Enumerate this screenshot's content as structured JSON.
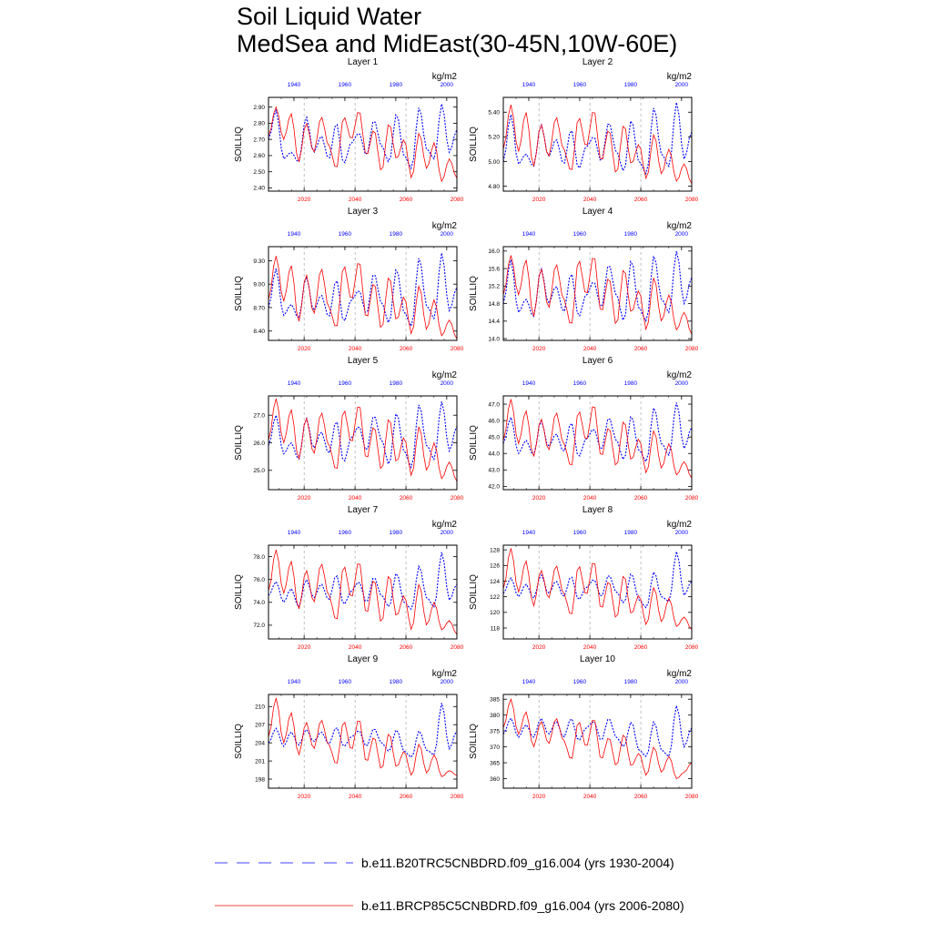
{
  "title_line1": "Soil Liquid Water",
  "title_line2": "MedSea and MidEast(30-45N,10W-60E)",
  "colors": {
    "historical": "#0000ff",
    "future": "#ff0000",
    "frame": "#000000",
    "vline": "#999999"
  },
  "legend": [
    {
      "label": "b.e11.B20TRC5CNBDRD.f09_g16.004 (yrs 1930-2004)",
      "color": "#0000ff",
      "style": "dashed"
    },
    {
      "label": "b.e11.BRCP85C5CNBDRD.f09_g16.004 (yrs 2006-2080)",
      "color": "#ff0000",
      "style": "solid"
    }
  ],
  "chart_data": [
    {
      "type": "line",
      "title": "Layer 1",
      "ylabel": "SOILLIQ",
      "units": "kg/m2",
      "yticks": [
        "2.40",
        "2.50",
        "2.60",
        "2.70",
        "2.80",
        "2.90"
      ],
      "ylim": [
        2.38,
        2.96
      ],
      "x_hist": {
        "start": 1930,
        "end": 2004,
        "ticks": [
          "1940",
          "1960",
          "1980",
          "2000"
        ]
      },
      "x_fut": {
        "start": 2006,
        "end": 2080,
        "ticks": [
          "2020",
          "2040",
          "2060",
          "2080"
        ]
      },
      "series": [
        {
          "name": "b.e11.B20TRC5CNBDRD.f09_g16.004 (yrs 1930-2004)",
          "anchors": [
            2.7,
            2.88,
            2.58,
            2.62,
            2.56,
            2.84,
            2.62,
            2.72,
            2.58,
            2.8,
            2.55,
            2.68,
            2.74,
            2.6,
            2.82,
            2.66,
            2.56,
            2.86,
            2.6,
            2.52,
            2.9,
            2.64,
            2.58,
            2.92,
            2.62,
            2.76
          ]
        },
        {
          "name": "b.e11.BRCP85C5CNBDRD.f09_g16.004 (yrs 2006-2080)",
          "anchors": [
            2.72,
            2.9,
            2.7,
            2.86,
            2.56,
            2.8,
            2.62,
            2.84,
            2.66,
            2.52,
            2.84,
            2.7,
            2.88,
            2.6,
            2.76,
            2.5,
            2.8,
            2.58,
            2.7,
            2.46,
            2.74,
            2.52,
            2.68,
            2.44,
            2.58,
            2.46
          ]
        }
      ]
    },
    {
      "type": "line",
      "title": "Layer 2",
      "ylabel": "SOILLIQ",
      "units": "kg/m2",
      "yticks": [
        "4.80",
        "5.00",
        "5.20",
        "5.40"
      ],
      "ylim": [
        4.76,
        5.52
      ],
      "x_hist": {
        "start": 1930,
        "end": 2004,
        "ticks": [
          "1940",
          "1960",
          "1980",
          "2000"
        ]
      },
      "x_fut": {
        "start": 2006,
        "end": 2080,
        "ticks": [
          "2020",
          "2040",
          "2060",
          "2080"
        ]
      },
      "series": [
        {
          "name": "b.e11.B20TRC5CNBDRD.f09_g16.004 (yrs 1930-2004)",
          "anchors": [
            5.0,
            5.38,
            4.98,
            5.06,
            4.96,
            5.3,
            5.04,
            5.18,
            4.98,
            5.26,
            4.94,
            5.12,
            5.2,
            5.0,
            5.32,
            5.08,
            4.92,
            5.34,
            5.0,
            4.9,
            5.44,
            5.06,
            4.96,
            5.48,
            5.02,
            5.24
          ]
        },
        {
          "name": "b.e11.BRCP85C5CNBDRD.f09_g16.004 (yrs 2006-2080)",
          "anchors": [
            5.1,
            5.46,
            5.08,
            5.4,
            4.96,
            5.3,
            5.04,
            5.36,
            5.1,
            4.92,
            5.36,
            5.12,
            5.42,
            5.0,
            5.26,
            4.9,
            5.3,
            4.98,
            5.14,
            4.86,
            5.22,
            4.9,
            5.1,
            4.84,
            4.98,
            4.82
          ]
        }
      ]
    },
    {
      "type": "line",
      "title": "Layer 3",
      "ylabel": "SOILLIQ",
      "units": "kg/m2",
      "yticks": [
        "8.40",
        "8.70",
        "9.00",
        "9.30"
      ],
      "ylim": [
        8.28,
        9.48
      ],
      "x_hist": {
        "start": 1930,
        "end": 2004,
        "ticks": [
          "1940",
          "1960",
          "1980",
          "2000"
        ]
      },
      "x_fut": {
        "start": 2006,
        "end": 2080,
        "ticks": [
          "2020",
          "2040",
          "2060",
          "2080"
        ]
      },
      "series": [
        {
          "name": "b.e11.B20TRC5CNBDRD.f09_g16.004 (yrs 1930-2004)",
          "anchors": [
            8.7,
            9.2,
            8.6,
            8.74,
            8.56,
            9.1,
            8.66,
            8.86,
            8.58,
            9.06,
            8.52,
            8.8,
            8.92,
            8.62,
            9.14,
            8.76,
            8.5,
            9.2,
            8.64,
            8.46,
            9.34,
            8.72,
            8.56,
            9.4,
            8.66,
            8.96
          ]
        },
        {
          "name": "b.e11.BRCP85C5CNBDRD.f09_g16.004 (yrs 2006-2080)",
          "anchors": [
            8.8,
            9.36,
            8.78,
            9.24,
            8.52,
            9.12,
            8.62,
            9.2,
            8.7,
            8.44,
            9.24,
            8.8,
            9.3,
            8.56,
            9.02,
            8.42,
            9.1,
            8.54,
            8.84,
            8.36,
            8.98,
            8.42,
            8.8,
            8.34,
            8.54,
            8.3
          ]
        }
      ]
    },
    {
      "type": "line",
      "title": "Layer 4",
      "ylabel": "SOILLIQ",
      "units": "kg/m2",
      "yticks": [
        "14.0",
        "14.4",
        "14.8",
        "15.2",
        "15.6",
        "16.0"
      ],
      "ylim": [
        13.96,
        16.1
      ],
      "x_hist": {
        "start": 1930,
        "end": 2004,
        "ticks": [
          "1940",
          "1960",
          "1980",
          "2000"
        ]
      },
      "x_fut": {
        "start": 2006,
        "end": 2080,
        "ticks": [
          "2020",
          "2040",
          "2060",
          "2080"
        ]
      },
      "series": [
        {
          "name": "b.e11.B20TRC5CNBDRD.f09_g16.004 (yrs 1930-2004)",
          "anchors": [
            14.8,
            15.8,
            14.6,
            14.9,
            14.5,
            15.6,
            14.8,
            15.2,
            14.6,
            15.5,
            14.5,
            15.0,
            15.3,
            14.7,
            15.7,
            15.0,
            14.4,
            15.8,
            14.7,
            14.4,
            15.9,
            14.9,
            14.6,
            16.0,
            14.8,
            15.4
          ]
        },
        {
          "name": "b.e11.BRCP85C5CNBDRD.f09_g16.004 (yrs 2006-2080)",
          "anchors": [
            15.0,
            15.9,
            15.0,
            15.8,
            14.5,
            15.6,
            14.7,
            15.7,
            14.9,
            14.3,
            15.8,
            15.0,
            15.9,
            14.6,
            15.4,
            14.3,
            15.6,
            14.6,
            15.1,
            14.2,
            15.4,
            14.4,
            15.0,
            14.2,
            14.6,
            14.1
          ]
        }
      ]
    },
    {
      "type": "line",
      "title": "Layer 5",
      "ylabel": "SOILLIQ",
      "units": "kg/m2",
      "yticks": [
        "25.0",
        "26.0",
        "27.0"
      ],
      "ylim": [
        24.3,
        27.7
      ],
      "x_hist": {
        "start": 1930,
        "end": 2004,
        "ticks": [
          "1940",
          "1960",
          "1980",
          "2000"
        ]
      },
      "x_fut": {
        "start": 2006,
        "end": 2080,
        "ticks": [
          "2020",
          "2040",
          "2060",
          "2080"
        ]
      },
      "series": [
        {
          "name": "b.e11.B20TRC5CNBDRD.f09_g16.004 (yrs 1930-2004)",
          "anchors": [
            25.9,
            27.0,
            25.6,
            26.0,
            25.4,
            26.9,
            25.8,
            26.4,
            25.6,
            26.8,
            25.3,
            26.2,
            26.6,
            25.7,
            27.0,
            26.1,
            25.2,
            27.1,
            25.7,
            25.1,
            27.4,
            25.9,
            25.4,
            27.5,
            25.7,
            26.6
          ]
        },
        {
          "name": "b.e11.BRCP85C5CNBDRD.f09_g16.004 (yrs 2006-2080)",
          "anchors": [
            26.1,
            27.6,
            26.0,
            27.2,
            25.4,
            26.9,
            25.6,
            27.1,
            25.9,
            25.0,
            27.2,
            26.0,
            27.4,
            25.4,
            26.6,
            25.0,
            26.9,
            25.3,
            26.2,
            24.8,
            26.6,
            25.0,
            26.0,
            24.7,
            25.3,
            24.6
          ]
        }
      ]
    },
    {
      "type": "line",
      "title": "Layer 6",
      "ylabel": "SOILLIQ",
      "units": "kg/m2",
      "yticks": [
        "42.0",
        "43.0",
        "44.0",
        "45.0",
        "46.0",
        "47.0"
      ],
      "ylim": [
        41.8,
        47.5
      ],
      "x_hist": {
        "start": 1930,
        "end": 2004,
        "ticks": [
          "1940",
          "1960",
          "1980",
          "2000"
        ]
      },
      "x_fut": {
        "start": 2006,
        "end": 2080,
        "ticks": [
          "2020",
          "2040",
          "2060",
          "2080"
        ]
      },
      "series": [
        {
          "name": "b.e11.B20TRC5CNBDRD.f09_g16.004 (yrs 1930-2004)",
          "anchors": [
            44.6,
            46.2,
            44.0,
            44.8,
            43.9,
            46.0,
            44.4,
            45.2,
            44.1,
            45.9,
            43.8,
            44.9,
            45.5,
            44.2,
            46.2,
            44.8,
            43.6,
            46.3,
            44.2,
            43.5,
            46.8,
            44.6,
            43.9,
            47.1,
            44.3,
            45.6
          ]
        },
        {
          "name": "b.e11.BRCP85C5CNBDRD.f09_g16.004 (yrs 2006-2080)",
          "anchors": [
            44.8,
            47.3,
            44.6,
            46.6,
            43.8,
            46.1,
            44.2,
            46.5,
            44.6,
            43.2,
            46.6,
            44.8,
            47.0,
            43.8,
            45.6,
            43.2,
            46.0,
            43.6,
            44.9,
            42.8,
            45.4,
            43.1,
            44.6,
            42.7,
            43.5,
            42.5
          ]
        }
      ]
    },
    {
      "type": "line",
      "title": "Layer 7",
      "ylabel": "SOILLIQ",
      "units": "kg/m2",
      "yticks": [
        "72.0",
        "74.0",
        "76.0",
        "78.0"
      ],
      "ylim": [
        70.8,
        79.0
      ],
      "x_hist": {
        "start": 1930,
        "end": 2004,
        "ticks": [
          "1940",
          "1960",
          "1980",
          "2000"
        ]
      },
      "x_fut": {
        "start": 2006,
        "end": 2080,
        "ticks": [
          "2020",
          "2040",
          "2060",
          "2080"
        ]
      },
      "series": [
        {
          "name": "b.e11.B20TRC5CNBDRD.f09_g16.004 (yrs 1930-2004)",
          "anchors": [
            74.6,
            75.8,
            74.0,
            75.2,
            73.6,
            76.0,
            74.4,
            75.6,
            74.2,
            76.4,
            73.8,
            75.0,
            75.8,
            74.0,
            76.2,
            74.6,
            73.6,
            76.6,
            74.0,
            73.4,
            77.2,
            74.4,
            73.6,
            78.4,
            74.2,
            75.6
          ]
        },
        {
          "name": "b.e11.BRCP85C5CNBDRD.f09_g16.004 (yrs 2006-2080)",
          "anchors": [
            75.0,
            78.6,
            74.8,
            77.6,
            73.4,
            76.8,
            74.0,
            77.4,
            74.6,
            72.4,
            77.2,
            74.4,
            77.6,
            73.0,
            76.0,
            72.2,
            76.4,
            72.8,
            74.6,
            71.6,
            75.6,
            72.0,
            74.0,
            71.6,
            72.4,
            71.2
          ]
        }
      ]
    },
    {
      "type": "line",
      "title": "Layer 8",
      "ylabel": "SOILLIQ",
      "units": "kg/m2",
      "yticks": [
        "118",
        "120",
        "122",
        "124",
        "126",
        "128"
      ],
      "ylim": [
        116.6,
        128.6
      ],
      "x_hist": {
        "start": 1930,
        "end": 2004,
        "ticks": [
          "1940",
          "1960",
          "1980",
          "2000"
        ]
      },
      "x_fut": {
        "start": 2006,
        "end": 2080,
        "ticks": [
          "2020",
          "2040",
          "2060",
          "2080"
        ]
      },
      "series": [
        {
          "name": "b.e11.B20TRC5CNBDRD.f09_g16.004 (yrs 1930-2004)",
          "anchors": [
            122.4,
            124.4,
            122.0,
            123.6,
            121.8,
            124.8,
            122.4,
            124.0,
            122.0,
            124.6,
            121.6,
            123.2,
            124.2,
            122.0,
            124.8,
            122.6,
            121.2,
            125.0,
            121.6,
            120.6,
            125.2,
            122.0,
            121.4,
            127.8,
            122.2,
            124.0
          ]
        },
        {
          "name": "b.e11.BRCP85C5CNBDRD.f09_g16.004 (yrs 2006-2080)",
          "anchors": [
            123.0,
            128.2,
            122.6,
            126.6,
            120.8,
            125.4,
            121.8,
            126.0,
            122.4,
            119.6,
            126.0,
            122.2,
            126.6,
            120.4,
            124.0,
            119.2,
            124.8,
            119.8,
            122.2,
            118.4,
            123.2,
            118.8,
            121.8,
            118.2,
            119.4,
            117.8
          ]
        }
      ]
    },
    {
      "type": "line",
      "title": "Layer 9",
      "ylabel": "SOILLIQ",
      "units": "kg/m2",
      "yticks": [
        "198",
        "201",
        "204",
        "207",
        "210"
      ],
      "ylim": [
        196.5,
        212.0
      ],
      "x_hist": {
        "start": 1930,
        "end": 2004,
        "ticks": [
          "1940",
          "1960",
          "1980",
          "2000"
        ]
      },
      "x_fut": {
        "start": 2006,
        "end": 2080,
        "ticks": [
          "2020",
          "2040",
          "2060",
          "2080"
        ]
      },
      "series": [
        {
          "name": "b.e11.B20TRC5CNBDRD.f09_g16.004 (yrs 1930-2004)",
          "anchors": [
            204.0,
            206.4,
            203.4,
            205.8,
            203.6,
            206.2,
            204.2,
            205.8,
            203.8,
            206.6,
            203.4,
            205.0,
            206.0,
            203.4,
            206.4,
            204.0,
            202.6,
            206.2,
            202.6,
            201.6,
            206.0,
            202.8,
            202.0,
            210.6,
            203.0,
            206.0
          ]
        },
        {
          "name": "b.e11.BRCP85C5CNBDRD.f09_g16.004 (yrs 2006-2080)",
          "anchors": [
            205.0,
            211.4,
            204.0,
            209.0,
            202.0,
            207.4,
            203.0,
            207.8,
            203.6,
            200.4,
            207.6,
            202.8,
            208.0,
            200.8,
            205.0,
            199.6,
            205.6,
            200.0,
            202.6,
            198.6,
            203.8,
            199.0,
            202.0,
            198.4,
            199.4,
            198.6
          ]
        }
      ]
    },
    {
      "type": "line",
      "title": "Layer 10",
      "ylabel": "SOILLIQ",
      "units": "kg/m2",
      "yticks": [
        "360",
        "365",
        "370",
        "375",
        "380",
        "385"
      ],
      "ylim": [
        357.0,
        386.5
      ],
      "x_hist": {
        "start": 1930,
        "end": 2004,
        "ticks": [
          "1940",
          "1960",
          "1980",
          "2000"
        ]
      },
      "x_fut": {
        "start": 2006,
        "end": 2080,
        "ticks": [
          "2020",
          "2040",
          "2060",
          "2080"
        ]
      },
      "series": [
        {
          "name": "b.e11.B20TRC5CNBDRD.f09_g16.004 (yrs 1930-2004)",
          "anchors": [
            374.0,
            379.0,
            373.0,
            377.0,
            373.0,
            379.0,
            374.0,
            378.0,
            373.0,
            379.0,
            372.0,
            376.0,
            378.0,
            372.0,
            379.0,
            373.0,
            370.0,
            378.0,
            369.0,
            367.0,
            378.0,
            369.0,
            367.0,
            383.0,
            370.0,
            376.0
          ]
        },
        {
          "name": "b.e11.BRCP85C5CNBDRD.f09_g16.004 (yrs 2006-2080)",
          "anchors": [
            376.0,
            385.0,
            374.0,
            381.0,
            370.0,
            378.0,
            371.0,
            379.0,
            372.0,
            366.0,
            378.0,
            370.0,
            379.0,
            366.0,
            373.0,
            364.0,
            374.0,
            364.0,
            368.0,
            361.0,
            370.0,
            362.0,
            367.0,
            360.0,
            362.0,
            365.0
          ]
        }
      ]
    }
  ]
}
